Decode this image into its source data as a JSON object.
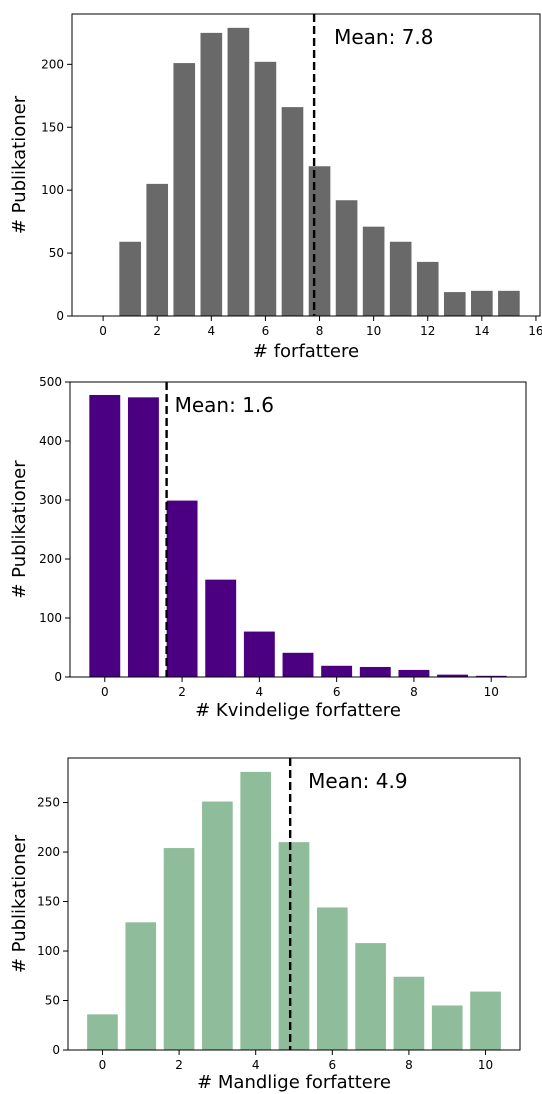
{
  "chart_data": [
    {
      "type": "bar",
      "x": [
        0,
        1,
        2,
        3,
        4,
        5,
        6,
        7,
        8,
        9,
        10,
        11,
        12,
        13,
        14,
        15
      ],
      "values": [
        0,
        59,
        105,
        201,
        225,
        229,
        202,
        166,
        119,
        92,
        71,
        59,
        43,
        19,
        20,
        20
      ],
      "mean": 7.8,
      "mean_label": "Mean: 7.8",
      "xlabel": "# forfattere",
      "ylabel": "# Publikationer",
      "xlim": [
        -1.15,
        16.15
      ],
      "ylim": [
        0,
        240
      ],
      "xticks": [
        0,
        2,
        4,
        6,
        8,
        10,
        12,
        14,
        16
      ],
      "yticks": [
        0,
        50,
        100,
        150,
        200
      ],
      "color": "#696969"
    },
    {
      "type": "bar",
      "x": [
        0,
        1,
        2,
        3,
        4,
        5,
        6,
        7,
        8,
        9,
        10
      ],
      "values": [
        478,
        474,
        299,
        165,
        77,
        41,
        19,
        17,
        12,
        4,
        2
      ],
      "mean": 1.6,
      "mean_label": "Mean: 1.6",
      "xlabel": "# Kvindelige forfattere",
      "ylabel": "# Publikationer",
      "xlim": [
        -0.9,
        10.9
      ],
      "ylim": [
        0,
        500
      ],
      "xticks": [
        0,
        2,
        4,
        6,
        8,
        10
      ],
      "yticks": [
        0,
        100,
        200,
        300,
        400,
        500
      ],
      "color": "#4b0082"
    },
    {
      "type": "bar",
      "x": [
        0,
        1,
        2,
        3,
        4,
        5,
        6,
        7,
        8,
        9,
        10
      ],
      "values": [
        36,
        129,
        204,
        251,
        281,
        210,
        144,
        108,
        74,
        45,
        59
      ],
      "mean": 4.9,
      "mean_label": "Mean: 4.9",
      "xlabel": "# Mandlige forfattere",
      "ylabel": "# Publikationer",
      "xlim": [
        -0.9,
        10.9
      ],
      "ylim": [
        0,
        295
      ],
      "xticks": [
        0,
        2,
        4,
        6,
        8,
        10
      ],
      "yticks": [
        0,
        50,
        100,
        150,
        200,
        250
      ],
      "color": "#8fbc9a"
    }
  ]
}
